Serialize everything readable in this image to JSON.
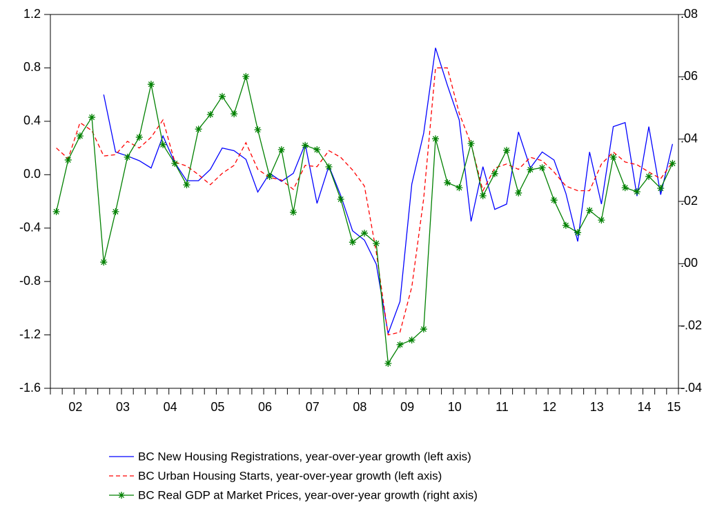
{
  "chart_data": {
    "type": "line",
    "categories": [
      null,
      null,
      "02",
      null,
      null,
      null,
      "03",
      null,
      null,
      null,
      "04",
      null,
      null,
      null,
      "05",
      null,
      null,
      null,
      "06",
      null,
      null,
      null,
      "07",
      null,
      null,
      null,
      "08",
      null,
      null,
      null,
      "09",
      null,
      null,
      null,
      "10",
      null,
      null,
      null,
      "11",
      null,
      null,
      null,
      "12",
      null,
      null,
      null,
      "13",
      null,
      null,
      null,
      "14",
      null,
      "15"
    ],
    "ylim": [
      -1.6,
      1.2
    ],
    "yticks": [
      -1.6,
      -1.2,
      -0.8,
      -0.4,
      {
        "value": 0,
        "label": "0.0"
      },
      0.4,
      0.8,
      1.2
    ],
    "y2lim": [
      -0.04,
      0.08
    ],
    "y2ticks": [
      {
        "value": -0.04,
        "label": "-.04"
      },
      {
        "value": -0.02,
        "label": "-.02"
      },
      {
        "value": 0,
        "label": ".00"
      },
      {
        "value": 0.02,
        "label": ".02"
      },
      {
        "value": 0.04,
        "label": ".04"
      },
      {
        "value": 0.06,
        "label": ".06"
      },
      {
        "value": 0.08,
        "label": ".08"
      }
    ],
    "grid": false,
    "legend": "bottom",
    "series": [
      {
        "name": "BC New Housing Registrations, year-over-year growth (left axis)",
        "color": "#0000ff",
        "style": "solid",
        "values": [
          null,
          null,
          null,
          null,
          0.6,
          0.17,
          0.14,
          0.105,
          0.05,
          0.29,
          0.09,
          -0.045,
          -0.045,
          0.04,
          0.2,
          0.18,
          0.115,
          -0.13,
          0.01,
          -0.05,
          0.01,
          0.23,
          -0.215,
          0.065,
          -0.155,
          -0.42,
          -0.49,
          -0.67,
          -1.19,
          -0.95,
          -0.07,
          0.31,
          0.95,
          0.67,
          0.41,
          -0.35,
          0.06,
          -0.26,
          -0.22,
          0.32,
          0.05,
          0.17,
          0.11,
          -0.14,
          -0.5,
          0.17,
          -0.22,
          0.36,
          0.39,
          -0.16,
          0.36,
          -0.15,
          0.23
        ]
      },
      {
        "name": "BC Urban Housing Starts, year-over-year growth (left axis)",
        "color": "#ff0000",
        "style": "dashed",
        "values": [
          0.2,
          0.12,
          0.39,
          0.33,
          0.14,
          0.15,
          0.25,
          0.2,
          0.28,
          0.41,
          0.095,
          0.065,
          0.0,
          -0.075,
          0.01,
          0.07,
          0.24,
          0.04,
          -0.02,
          -0.04,
          -0.11,
          0.07,
          0.06,
          0.18,
          0.13,
          0.035,
          -0.085,
          -0.58,
          -1.2,
          -1.18,
          -0.84,
          -0.18,
          0.8,
          0.8,
          0.46,
          0.23,
          -0.12,
          0.05,
          0.08,
          0.04,
          0.13,
          0.105,
          0.02,
          -0.085,
          -0.12,
          -0.12,
          0.08,
          0.17,
          0.095,
          0.075,
          0.02,
          -0.03,
          0.095
        ]
      },
      {
        "name": "BC Real GDP at Market Prices, year-over-year growth (right axis)",
        "color": "#008000",
        "style": "solid",
        "marker": "asterisk",
        "axis": "y2",
        "values": [
          0.0167,
          0.0333,
          0.041,
          0.047,
          0.0005,
          0.0167,
          0.0342,
          0.0406,
          0.0576,
          0.0382,
          0.0322,
          0.0253,
          0.0432,
          0.0479,
          0.0537,
          0.0481,
          0.0601,
          0.043,
          0.028,
          0.0366,
          0.0165,
          0.038,
          0.0366,
          0.0311,
          0.0207,
          0.0069,
          0.0098,
          0.0065,
          -0.032,
          -0.026,
          -0.0245,
          -0.021,
          0.0401,
          0.026,
          0.0244,
          0.0386,
          0.0218,
          0.0289,
          0.0364,
          0.0227,
          0.0302,
          0.0308,
          0.0204,
          0.0123,
          0.01,
          0.0171,
          0.014,
          0.0342,
          0.0244,
          0.0231,
          0.028,
          0.0242,
          0.0322
        ]
      }
    ]
  }
}
